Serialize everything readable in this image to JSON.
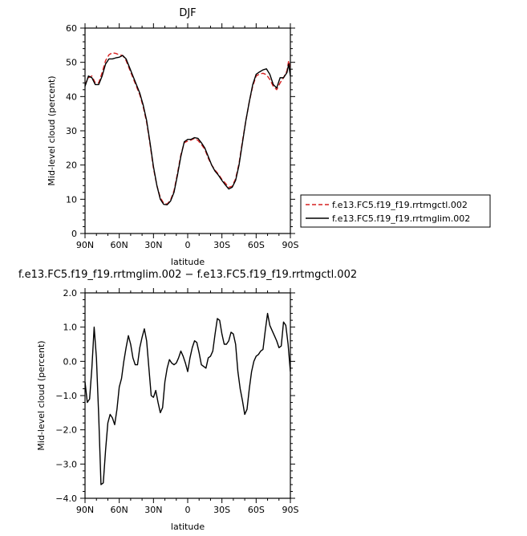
{
  "chart_data": [
    {
      "type": "line",
      "title": "DJF",
      "xlabel": "latitude",
      "ylabel": "Mid-level cloud (percent)",
      "ylim": [
        0,
        60
      ],
      "yticks": [
        0,
        10,
        20,
        30,
        40,
        50,
        60
      ],
      "xlim": [
        90,
        -90
      ],
      "xticks": [
        90,
        60,
        30,
        0,
        -30,
        -60,
        -90
      ],
      "xtick_labels": [
        "90N",
        "60N",
        "30N",
        "0",
        "30S",
        "60S",
        "90S"
      ],
      "legend": "outside-right",
      "series": [
        {
          "name": "f.e13.FC5.f19_f19.rrtmgctl.002",
          "color": "#d62020",
          "style": "dashed",
          "x": [
            90,
            87,
            84,
            81,
            78,
            75,
            72,
            69,
            66,
            63,
            60,
            57,
            54,
            51,
            48,
            45,
            42,
            39,
            36,
            33,
            30,
            27,
            24,
            21,
            18,
            15,
            12,
            9,
            6,
            3,
            0,
            -3,
            -6,
            -9,
            -12,
            -15,
            -18,
            -21,
            -24,
            -27,
            -30,
            -33,
            -36,
            -39,
            -42,
            -45,
            -48,
            -51,
            -54,
            -57,
            -60,
            -63,
            -66,
            -69,
            -72,
            -75,
            -78,
            -81,
            -84,
            -87,
            -88.5,
            -90
          ],
          "values": [
            43.5,
            45.5,
            46,
            44,
            44,
            47,
            50.5,
            52.2,
            52.8,
            52.6,
            52.2,
            52,
            50.5,
            48,
            45.5,
            43,
            40.5,
            37,
            32.5,
            26,
            19,
            14,
            10.5,
            8.8,
            8.6,
            9.8,
            12.5,
            17.5,
            23,
            26.5,
            27,
            27.3,
            27.8,
            27.2,
            26,
            24.6,
            22,
            20,
            18.5,
            17.3,
            15.8,
            14.7,
            13.5,
            13.8,
            16,
            20.5,
            27,
            33,
            38.5,
            43,
            46,
            46.6,
            46.8,
            46.4,
            45,
            43,
            42,
            44,
            45.5,
            47.5,
            50.5,
            48
          ]
        },
        {
          "name": "f.e13.FC5.f19_f19.rrtmglim.002",
          "color": "#000000",
          "style": "solid",
          "x": [
            90,
            87,
            84,
            81,
            78,
            75,
            72,
            69,
            66,
            63,
            60,
            57,
            54,
            51,
            48,
            45,
            42,
            39,
            36,
            33,
            30,
            27,
            24,
            21,
            18,
            15,
            12,
            9,
            6,
            3,
            0,
            -3,
            -6,
            -9,
            -12,
            -15,
            -18,
            -21,
            -24,
            -27,
            -30,
            -33,
            -36,
            -39,
            -42,
            -45,
            -48,
            -51,
            -54,
            -57,
            -60,
            -63,
            -66,
            -69,
            -72,
            -75,
            -78,
            -81,
            -84,
            -87,
            -88.5,
            -90
          ],
          "values": [
            43,
            46,
            45.5,
            43.5,
            43.5,
            46,
            49.5,
            51,
            51,
            51.3,
            51.5,
            52,
            51,
            48.5,
            46,
            43.5,
            41,
            37.5,
            33,
            26.5,
            19.5,
            14,
            10,
            8.5,
            8.4,
            9.5,
            12,
            17,
            22.5,
            26.8,
            27.5,
            27.5,
            28,
            27.8,
            26.5,
            25,
            22.5,
            20,
            18.2,
            17,
            15.5,
            14.2,
            13,
            13.5,
            15.5,
            20,
            26.5,
            33,
            38.5,
            43.5,
            46.5,
            47.2,
            47.8,
            48.1,
            46.5,
            43.5,
            42.5,
            45.5,
            45.5,
            47,
            49.5,
            46
          ]
        }
      ]
    },
    {
      "type": "line",
      "title": "f.e13.FC5.f19_f19.rrtmglim.002 − f.e13.FC5.f19_f19.rrtmgctl.002",
      "xlabel": "latitude",
      "ylabel": "Mid-level cloud (percent)",
      "ylim": [
        -4.0,
        2.0
      ],
      "yticks": [
        -4.0,
        -3.0,
        -2.0,
        -1.0,
        0.0,
        1.0,
        2.0
      ],
      "ytick_labels": [
        "−4.0",
        "−3.0",
        "−2.0",
        "−1.0",
        "0.0",
        "1.0",
        "2.0"
      ],
      "xlim": [
        90,
        -90
      ],
      "xticks": [
        90,
        60,
        30,
        0,
        -30,
        -60,
        -90
      ],
      "xtick_labels": [
        "90N",
        "60N",
        "30N",
        "0",
        "30S",
        "60S",
        "90S"
      ],
      "series": [
        {
          "color": "#000000",
          "style": "solid",
          "x": [
            90,
            88,
            86,
            84,
            82,
            80,
            78,
            76,
            74,
            72,
            70,
            68,
            66,
            64,
            62,
            60,
            58,
            56,
            54,
            52,
            50,
            48,
            46,
            44,
            42,
            40,
            38,
            36,
            34,
            32,
            30,
            28,
            26,
            24,
            22,
            20,
            18,
            16,
            14,
            12,
            10,
            8,
            6,
            4,
            2,
            0,
            -2,
            -4,
            -6,
            -8,
            -10,
            -12,
            -14,
            -16,
            -18,
            -20,
            -22,
            -24,
            -26,
            -28,
            -30,
            -32,
            -34,
            -36,
            -38,
            -40,
            -42,
            -44,
            -46,
            -48,
            -50,
            -52,
            -54,
            -56,
            -58,
            -60,
            -62,
            -64,
            -66,
            -68,
            -70,
            -72,
            -74,
            -76,
            -78,
            -80,
            -82,
            -84,
            -86,
            -88,
            -90
          ],
          "values": [
            -0.6,
            -1.2,
            -1.1,
            -0.2,
            1.0,
            0.1,
            -1.6,
            -3.6,
            -3.55,
            -2.6,
            -1.8,
            -1.55,
            -1.65,
            -1.85,
            -1.4,
            -0.75,
            -0.5,
            0.0,
            0.4,
            0.75,
            0.5,
            0.1,
            -0.1,
            -0.1,
            0.4,
            0.7,
            0.95,
            0.6,
            -0.2,
            -1.0,
            -1.05,
            -0.85,
            -1.2,
            -1.5,
            -1.35,
            -0.6,
            -0.2,
            0.05,
            -0.05,
            -0.1,
            -0.05,
            0.1,
            0.3,
            0.15,
            -0.05,
            -0.3,
            0.1,
            0.4,
            0.6,
            0.55,
            0.25,
            -0.1,
            -0.15,
            -0.2,
            0.1,
            0.15,
            0.3,
            0.8,
            1.25,
            1.2,
            0.8,
            0.5,
            0.5,
            0.6,
            0.85,
            0.8,
            0.5,
            -0.3,
            -0.8,
            -1.15,
            -1.55,
            -1.4,
            -0.8,
            -0.3,
            0.0,
            0.15,
            0.2,
            0.3,
            0.35,
            0.9,
            1.4,
            1.05,
            0.9,
            0.75,
            0.6,
            0.4,
            0.45,
            1.15,
            1.05,
            0.5,
            -0.3
          ]
        }
      ]
    }
  ]
}
